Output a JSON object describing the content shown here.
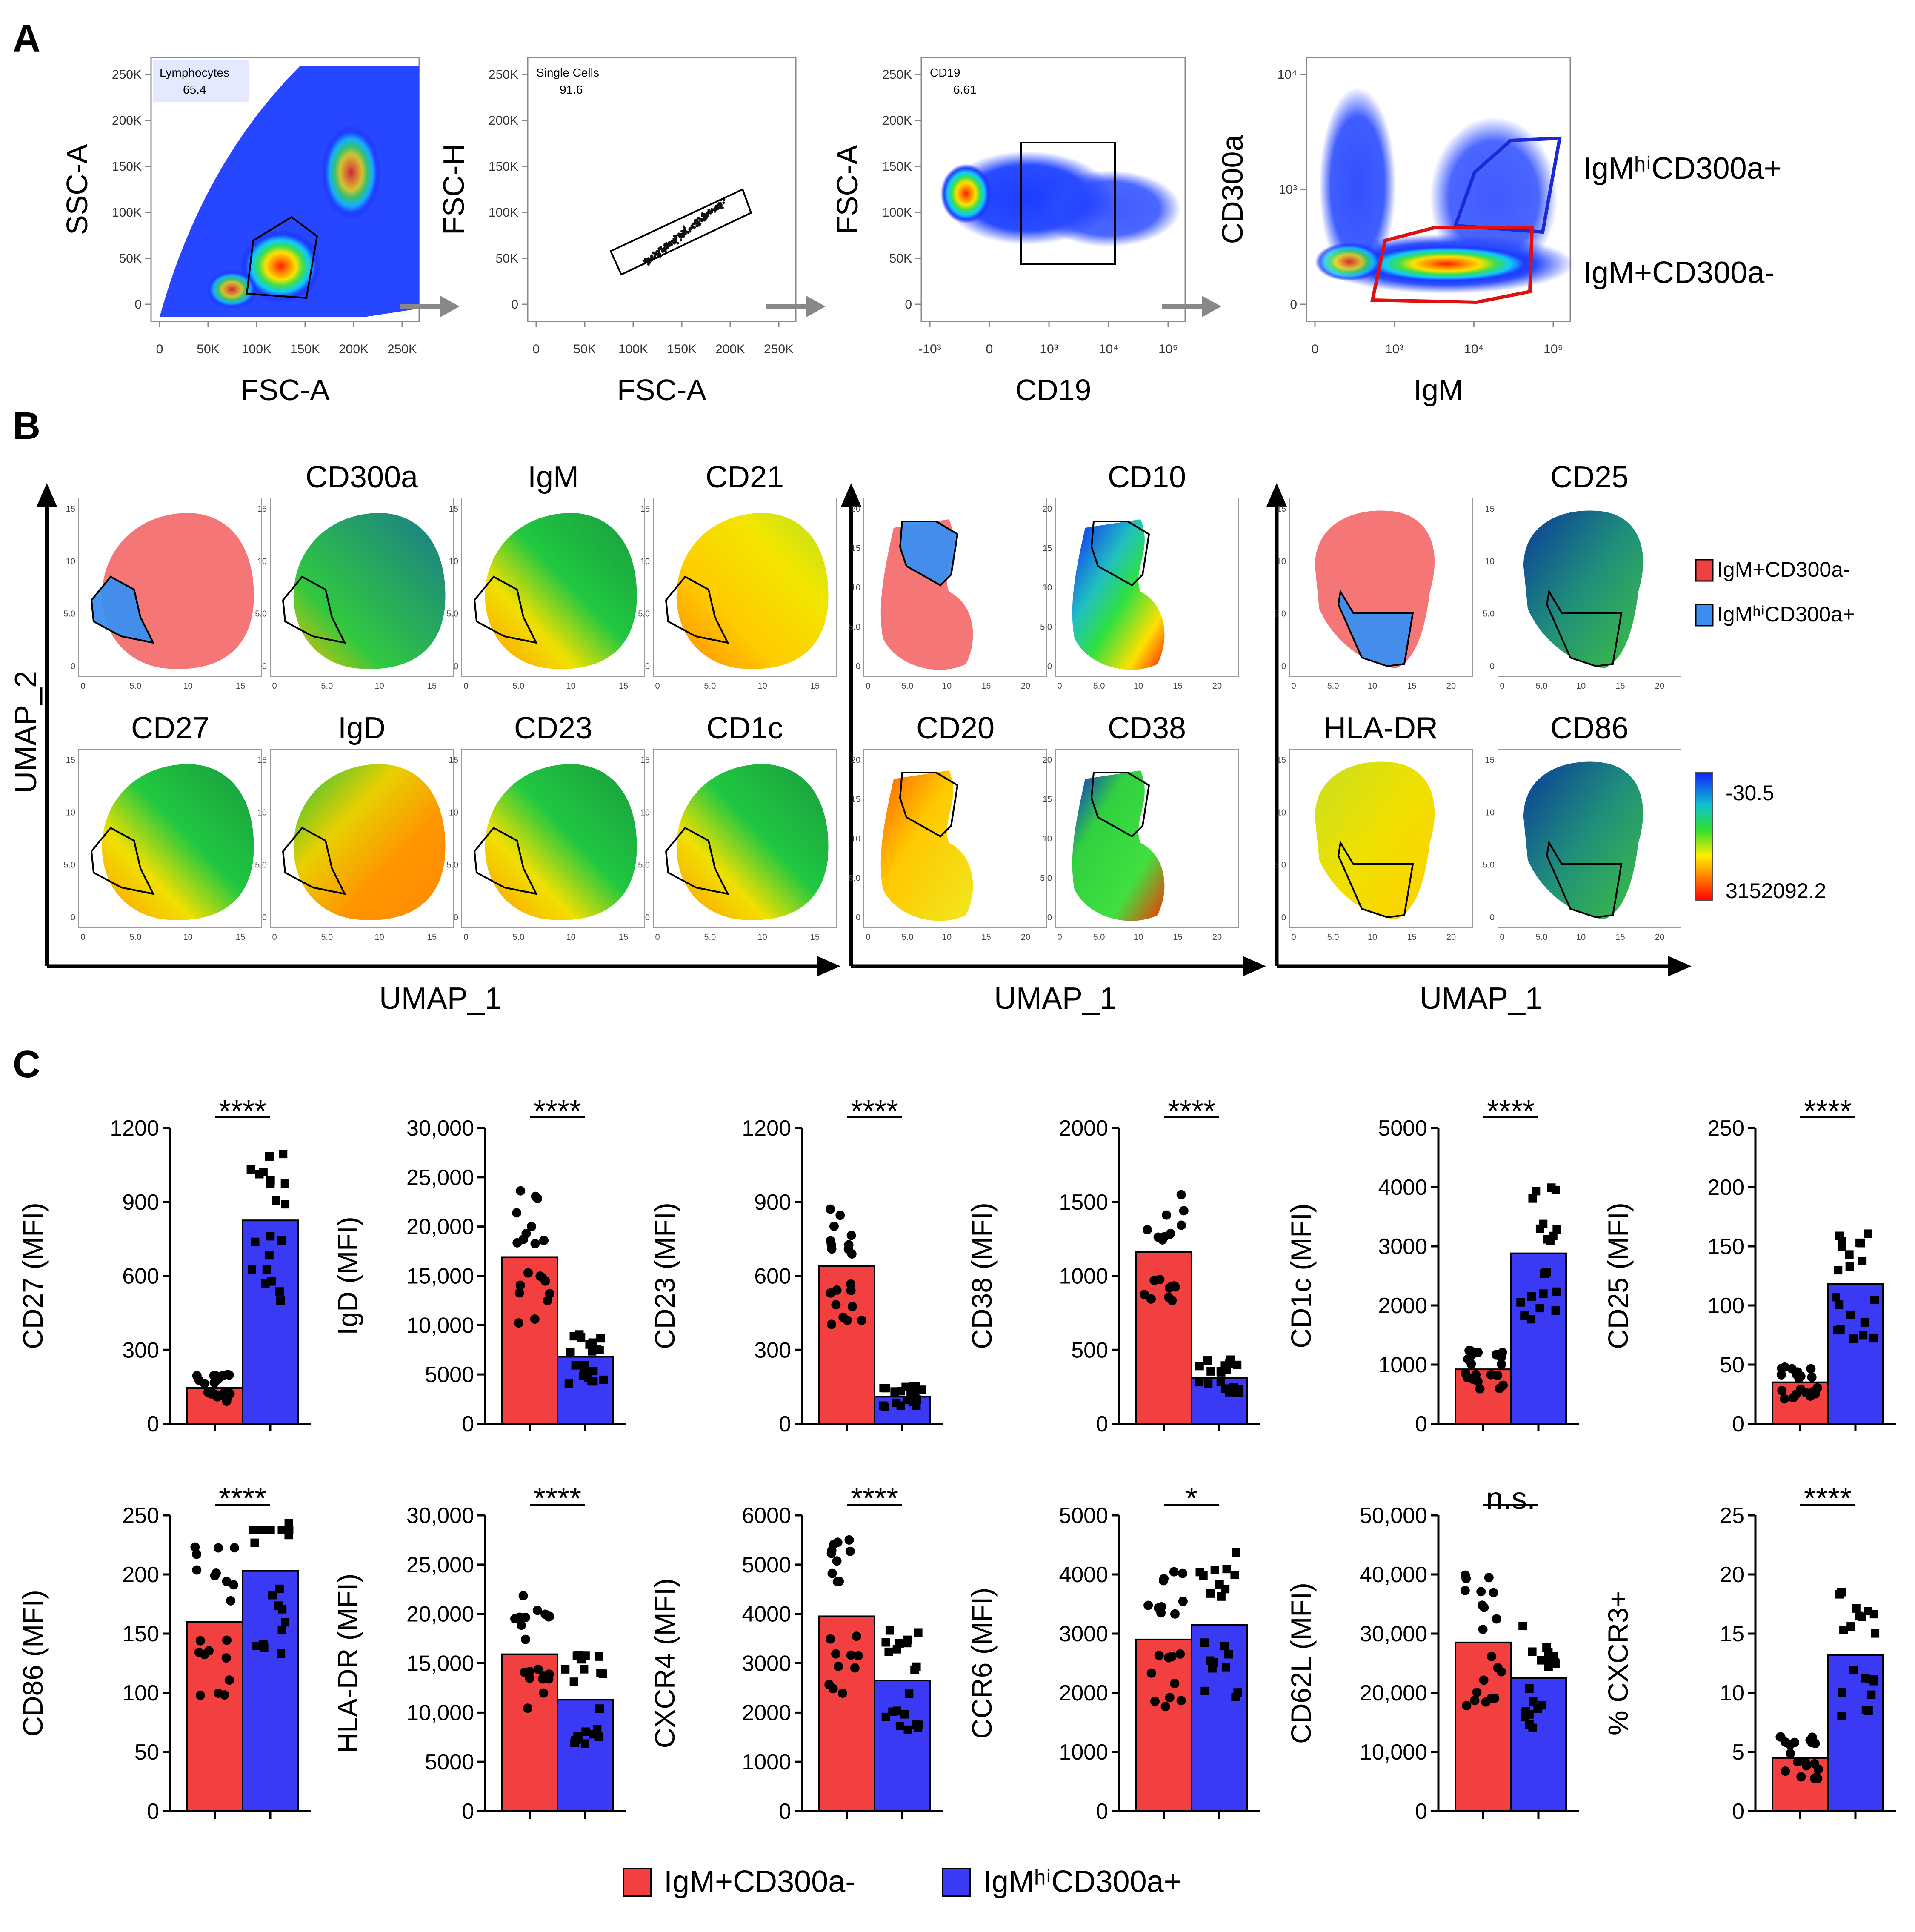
{
  "colors": {
    "red": "#f24040",
    "blue": "#3a3af5",
    "gate_red": "#e01010",
    "gate_blue": "#1a2ad6"
  },
  "panel_a": {
    "letter": "A",
    "plots": [
      {
        "xlabel": "FSC-A",
        "ylabel": "SSC-A",
        "gate_label": "Lymphocytes",
        "gate_value": "65.4",
        "xticks": [
          "0",
          "50K",
          "100K",
          "150K",
          "200K",
          "250K"
        ],
        "yticks": [
          "250K",
          "200K",
          "150K",
          "100K",
          "50K",
          "0"
        ]
      },
      {
        "xlabel": "FSC-A",
        "ylabel": "FSC-H",
        "gate_label": "Single Cells",
        "gate_value": "91.6",
        "xticks": [
          "0",
          "50K",
          "100K",
          "150K",
          "200K",
          "250K"
        ],
        "yticks": [
          "250K",
          "200K",
          "150K",
          "100K",
          "50K",
          "0"
        ]
      },
      {
        "xlabel": "CD19",
        "ylabel": "FSC-A",
        "gate_label": "CD19",
        "gate_value": "6.61",
        "xticks": [
          "-10³",
          "0",
          "10³",
          "10⁴",
          "10⁵"
        ],
        "yticks": [
          "250K",
          "200K",
          "150K",
          "100K",
          "50K",
          "0"
        ]
      },
      {
        "xlabel": "IgM",
        "ylabel": "CD300a",
        "gate_label": "",
        "gate_value": "",
        "xticks": [
          "0",
          "10³",
          "10⁴",
          "10⁵"
        ],
        "yticks": [
          "10⁴",
          "10³",
          "0"
        ]
      }
    ],
    "gate_labels": {
      "hi": "IgMʰⁱCD300a+",
      "lo": "IgM+CD300a-"
    }
  },
  "panel_b": {
    "letter": "B",
    "groups": [
      {
        "ylabel": "UMAP_2",
        "xlabel": "UMAP_1",
        "top_titles": [
          "",
          "CD300a",
          "IgM",
          "CD21"
        ],
        "bottom_titles": [
          "CD27",
          "IgD",
          "CD23",
          "CD1c"
        ],
        "xticks": [
          "0",
          "5.0",
          "10",
          "15"
        ],
        "yticks": [
          "15",
          "10",
          "5.0",
          "0"
        ]
      },
      {
        "ylabel": "",
        "xlabel": "UMAP_1",
        "top_titles": [
          "",
          "CD10"
        ],
        "bottom_titles": [
          "CD20",
          "CD38"
        ],
        "xticks": [
          "0",
          "5.0",
          "10",
          "15",
          "20"
        ],
        "yticks": [
          "20",
          "15",
          "10",
          "5.0",
          "0"
        ]
      },
      {
        "ylabel": "",
        "xlabel": "UMAP_1",
        "top_titles": [
          "",
          "CD25"
        ],
        "bottom_titles": [
          "HLA-DR",
          "CD86"
        ],
        "xticks": [
          "0",
          "5.0",
          "10",
          "15",
          "20"
        ],
        "yticks": [
          "15",
          "10",
          "5.0",
          "0"
        ]
      }
    ],
    "legend": [
      {
        "label": "IgM+CD300a-",
        "color": "#f24040"
      },
      {
        "label": "IgMʰⁱCD300a+",
        "color": "#3a8ef0"
      }
    ],
    "colorbar": {
      "max_label": "-30.5",
      "min_label": "3152092.2"
    }
  },
  "panel_c": {
    "letter": "C",
    "legend": [
      {
        "label": "IgM+CD300a-",
        "color": "#f24040"
      },
      {
        "label": "IgMʰⁱCD300a+",
        "color": "#3a3af5"
      }
    ]
  },
  "chart_data": [
    {
      "type": "bar",
      "ylabel": "CD27 (MFI)",
      "ylim": [
        0,
        1200
      ],
      "yticks": [
        "0",
        "300",
        "600",
        "900",
        "1200"
      ],
      "significance": "****",
      "categories": [
        "IgM+CD300a-",
        "IgMhiCD300a+"
      ],
      "values": [
        145,
        825
      ]
    },
    {
      "type": "bar",
      "ylabel": "IgD (MFI)",
      "ylim": [
        0,
        30000
      ],
      "yticks": [
        "0",
        "5000",
        "10,000",
        "15,000",
        "20,000",
        "25,000",
        "30,000"
      ],
      "significance": "****",
      "categories": [
        "IgM+CD300a-",
        "IgMhiCD300a+"
      ],
      "values": [
        16900,
        6800
      ]
    },
    {
      "type": "bar",
      "ylabel": "CD23 (MFI)",
      "ylim": [
        0,
        1200
      ],
      "yticks": [
        "0",
        "300",
        "600",
        "900",
        "1200"
      ],
      "significance": "****",
      "categories": [
        "IgM+CD300a-",
        "IgMhiCD300a+"
      ],
      "values": [
        640,
        110
      ]
    },
    {
      "type": "bar",
      "ylabel": "CD38 (MFI)",
      "ylim": [
        0,
        2000
      ],
      "yticks": [
        "0",
        "500",
        "1000",
        "1500",
        "2000"
      ],
      "significance": "****",
      "categories": [
        "IgM+CD300a-",
        "IgMhiCD300a+"
      ],
      "values": [
        1160,
        310
      ]
    },
    {
      "type": "bar",
      "ylabel": "CD1c (MFI)",
      "ylim": [
        0,
        5000
      ],
      "yticks": [
        "0",
        "1000",
        "2000",
        "3000",
        "4000",
        "5000"
      ],
      "significance": "****",
      "categories": [
        "IgM+CD300a-",
        "IgMhiCD300a+"
      ],
      "values": [
        920,
        2880
      ]
    },
    {
      "type": "bar",
      "ylabel": "CD25 (MFI)",
      "ylim": [
        0,
        250
      ],
      "yticks": [
        "0",
        "50",
        "100",
        "150",
        "200",
        "250"
      ],
      "significance": "****",
      "categories": [
        "IgM+CD300a-",
        "IgMhiCD300a+"
      ],
      "values": [
        35,
        118
      ]
    },
    {
      "type": "bar",
      "ylabel": "CD86 (MFI)",
      "ylim": [
        0,
        250
      ],
      "yticks": [
        "0",
        "50",
        "100",
        "150",
        "200",
        "250"
      ],
      "significance": "****",
      "categories": [
        "IgM+CD300a-",
        "IgMhiCD300a+"
      ],
      "values": [
        160,
        203
      ]
    },
    {
      "type": "bar",
      "ylabel": "HLA-DR (MFI)",
      "ylim": [
        0,
        30000
      ],
      "yticks": [
        "0",
        "5000",
        "10,000",
        "15,000",
        "20,000",
        "25,000",
        "30,000"
      ],
      "significance": "****",
      "categories": [
        "IgM+CD300a-",
        "IgMhiCD300a+"
      ],
      "values": [
        15900,
        11300
      ]
    },
    {
      "type": "bar",
      "ylabel": "CXCR4 (MFI)",
      "ylim": [
        0,
        6000
      ],
      "yticks": [
        "0",
        "1000",
        "2000",
        "3000",
        "4000",
        "5000",
        "6000"
      ],
      "significance": "****",
      "categories": [
        "IgM+CD300a-",
        "IgMhiCD300a+"
      ],
      "values": [
        3950,
        2650
      ]
    },
    {
      "type": "bar",
      "ylabel": "CCR6 (MFI)",
      "ylim": [
        0,
        5000
      ],
      "yticks": [
        "0",
        "1000",
        "2000",
        "3000",
        "4000",
        "5000"
      ],
      "significance": "*",
      "categories": [
        "IgM+CD300a-",
        "IgMhiCD300a+"
      ],
      "values": [
        2900,
        3150
      ]
    },
    {
      "type": "bar",
      "ylabel": "CD62L (MFI)",
      "ylim": [
        0,
        50000
      ],
      "yticks": [
        "0",
        "10,000",
        "20,000",
        "30,000",
        "40,000",
        "50,000"
      ],
      "significance": "n.s.",
      "categories": [
        "IgM+CD300a-",
        "IgMhiCD300a+"
      ],
      "values": [
        28500,
        22500
      ]
    },
    {
      "type": "bar",
      "ylabel": "% CXCR3+",
      "ylim": [
        0,
        25
      ],
      "yticks": [
        "0",
        "5",
        "10",
        "15",
        "20",
        "25"
      ],
      "significance": "****",
      "categories": [
        "IgM+CD300a-",
        "IgMhiCD300a+"
      ],
      "values": [
        4.5,
        13.2
      ]
    }
  ]
}
